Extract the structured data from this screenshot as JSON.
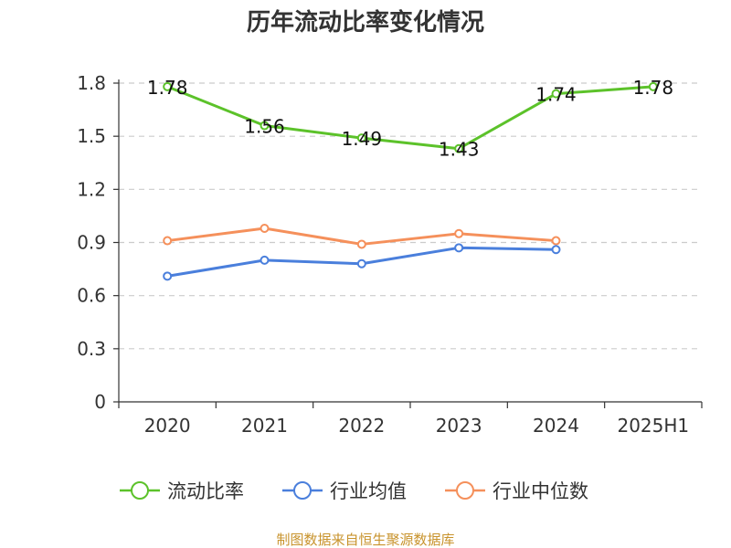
{
  "chart_data": {
    "type": "line",
    "title": "历年流动比率变化情况",
    "categories": [
      "2020",
      "2021",
      "2022",
      "2023",
      "2024",
      "2025H1"
    ],
    "y_ticks": [
      "0",
      "0.3",
      "0.6",
      "0.9",
      "1.2",
      "1.5",
      "1.8"
    ],
    "ylim": [
      0,
      1.8
    ],
    "grid": true,
    "legend_position": "bottom",
    "series": [
      {
        "name": "流动比率",
        "color": "#5cc22a",
        "values": [
          1.78,
          1.56,
          1.49,
          1.43,
          1.74,
          1.78
        ],
        "labels": [
          "1.78",
          "1.56",
          "1.49",
          "1.43",
          "1.74",
          "1.78"
        ]
      },
      {
        "name": "行业均值",
        "color": "#4a7fdc",
        "values": [
          0.71,
          0.8,
          0.78,
          0.87,
          0.86,
          null
        ]
      },
      {
        "name": "行业中位数",
        "color": "#f5905b",
        "values": [
          0.91,
          0.98,
          0.89,
          0.95,
          0.91,
          null
        ]
      }
    ],
    "source": "制图数据来自恒生聚源数据库"
  }
}
